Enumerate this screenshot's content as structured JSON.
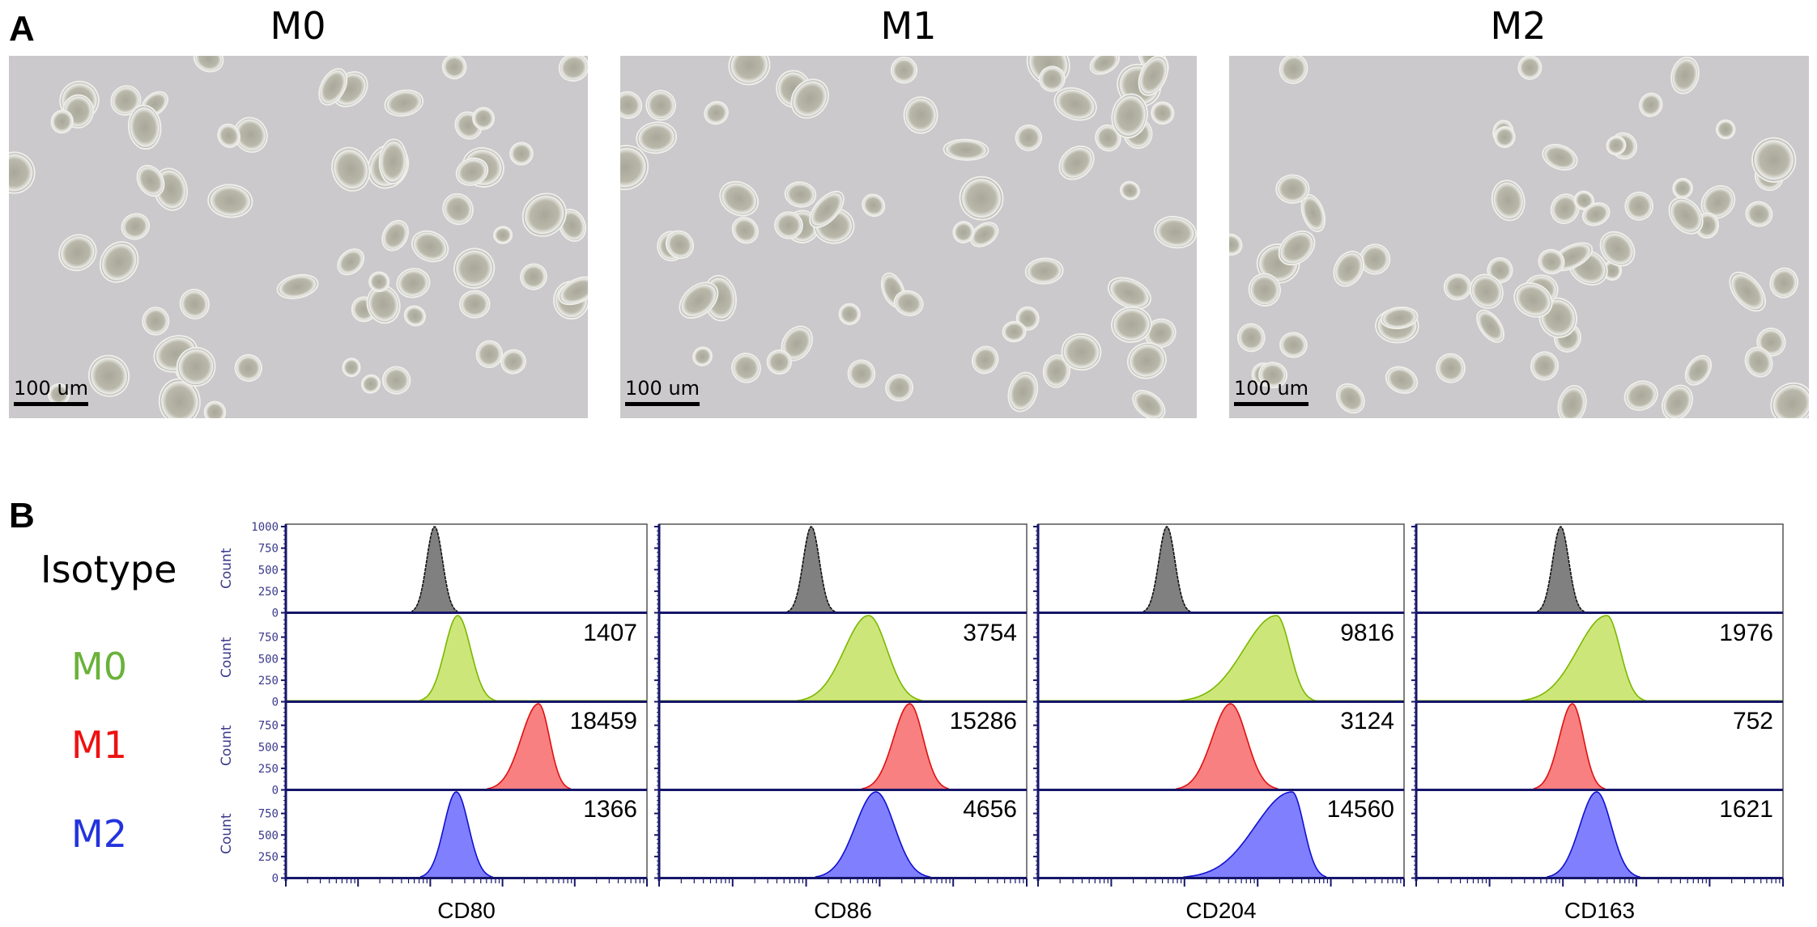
{
  "panel_a": {
    "label": "A",
    "images": [
      {
        "title": "M0",
        "scale_bar": "100 um"
      },
      {
        "title": "M1",
        "scale_bar": "100 um"
      },
      {
        "title": "M2",
        "scale_bar": "100 um"
      }
    ]
  },
  "panel_b": {
    "label": "B"
  },
  "chart_data": {
    "type": "histogram",
    "rows": [
      "Isotype",
      "M0",
      "M1",
      "M2"
    ],
    "row_colors": {
      "Isotype": {
        "label": "#000000",
        "fill": "#808080",
        "stroke": "#111111"
      },
      "M0": {
        "label": "#6ab23a",
        "fill": "#cde67a",
        "stroke": "#7ab800"
      },
      "M1": {
        "label": "#ee1111",
        "fill": "#f88080",
        "stroke": "#e01010"
      },
      "M2": {
        "label": "#2233dd",
        "fill": "#8080ff",
        "stroke": "#1010d0"
      }
    },
    "ylabel": "Count",
    "yticks_first_row": [
      "1000",
      "750",
      "500",
      "250",
      "0"
    ],
    "yticks_other_rows": [
      "750",
      "500",
      "250",
      "0"
    ],
    "ylim": [
      0,
      1000
    ],
    "x_scale": "log",
    "x_log10_range": [
      1,
      6
    ],
    "grid": false,
    "markers": [
      {
        "xlabel": "CD80",
        "mfi": {
          "M0": "1407",
          "M1": "18459",
          "M2": "1366"
        },
        "peaks_log10": {
          "Isotype": 3.06,
          "M0": 3.38,
          "M1": 4.5,
          "M2": 3.36
        },
        "spread_log10": {
          "Isotype": [
            0.11,
            0.11
          ],
          "M0": [
            0.18,
            0.18
          ],
          "M1": [
            0.24,
            0.15
          ],
          "M2": [
            0.17,
            0.17
          ]
        }
      },
      {
        "xlabel": "CD86",
        "mfi": {
          "M0": "3754",
          "M1": "15286",
          "M2": "4656"
        },
        "peaks_log10": {
          "Isotype": 3.07,
          "M0": 3.85,
          "M1": 4.41,
          "M2": 3.95
        },
        "spread_log10": {
          "Isotype": [
            0.11,
            0.11
          ],
          "M0": [
            0.33,
            0.25
          ],
          "M1": [
            0.22,
            0.18
          ],
          "M2": [
            0.28,
            0.25
          ]
        }
      },
      {
        "xlabel": "CD204",
        "mfi": {
          "M0": "9816",
          "M1": "3124",
          "M2": "14560"
        },
        "peaks_log10": {
          "Isotype": 2.76,
          "M0": 4.26,
          "M1": 3.63,
          "M2": 4.47
        },
        "spread_log10": {
          "Isotype": [
            0.11,
            0.11
          ],
          "M0": [
            0.45,
            0.18
          ],
          "M1": [
            0.25,
            0.22
          ],
          "M2": [
            0.5,
            0.16
          ]
        }
      },
      {
        "xlabel": "CD163",
        "mfi": {
          "M0": "1976",
          "M1": "752",
          "M2": "1621"
        },
        "peaks_log10": {
          "Isotype": 2.97,
          "M0": 3.6,
          "M1": 3.13,
          "M2": 3.46
        },
        "spread_log10": {
          "Isotype": [
            0.11,
            0.11
          ],
          "M0": [
            0.4,
            0.18
          ],
          "M1": [
            0.18,
            0.15
          ],
          "M2": [
            0.23,
            0.2
          ]
        }
      }
    ]
  }
}
